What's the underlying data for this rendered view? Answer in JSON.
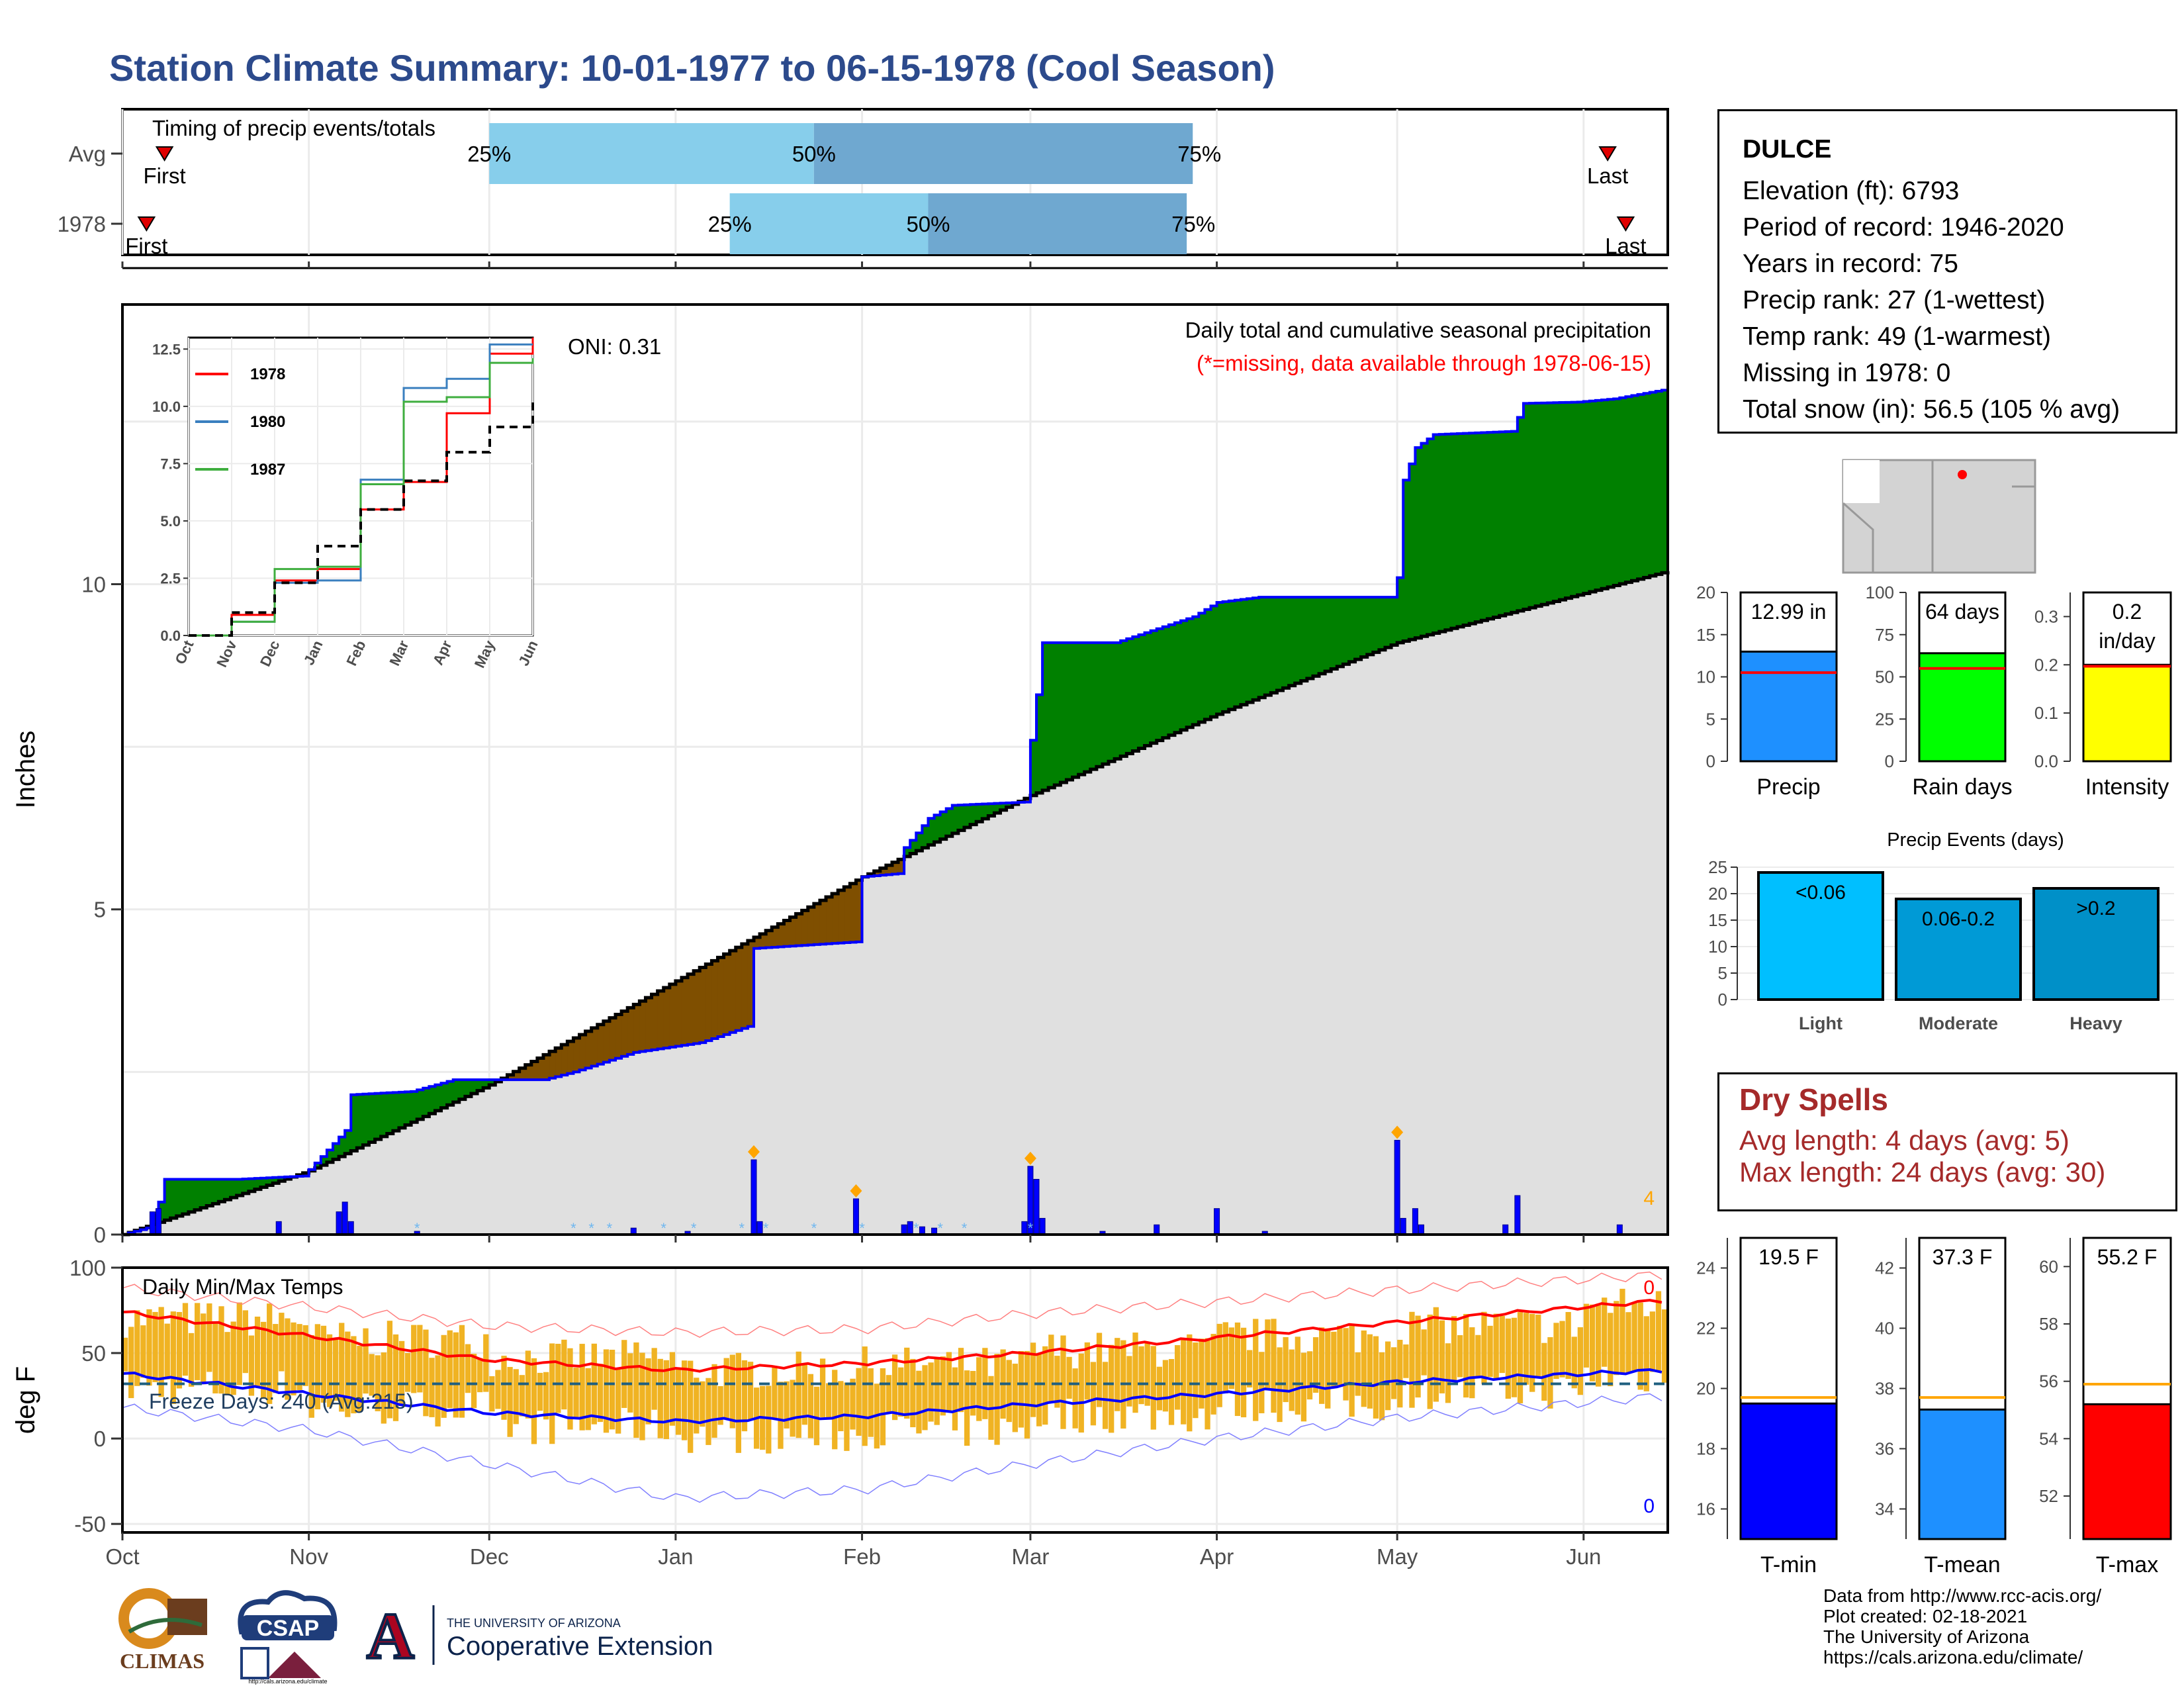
{
  "title": "Station Climate Summary: 10-01-1977 to 06-15-1978 (Cool Season)",
  "station": {
    "name": "DULCE",
    "lines": [
      "Elevation (ft): 6793",
      "Period of record: 1946-2020",
      "Years in record: 75",
      "Precip rank: 27 (1-wettest)",
      "Temp rank: 49 (1-warmest)",
      "Missing in 1978: 0",
      "Total snow (in): 56.5 (105 % avg)"
    ]
  },
  "dry_spells": {
    "title": "Dry Spells",
    "avg": "Avg length: 4 days (avg: 5)",
    "max": "Max length: 24 days (avg: 30)"
  },
  "credits": [
    "Data from http://www.rcc-acis.org/",
    "Plot created: 02-18-2021",
    "The University of Arizona",
    "https://cals.arizona.edu/climate/"
  ],
  "logos": {
    "climas": "CLIMAS",
    "csap": "CSAP",
    "csap_url": "http://cals.arizona.edu/climate",
    "ua_line1": "THE UNIVERSITY OF ARIZONA",
    "ua_line2": "Cooperative Extension",
    "ua_letter": "A"
  },
  "colors": {
    "green": "#008000",
    "brown": "#7f4f00",
    "grey": "#e0e0e0",
    "blue": "#0000ff",
    "light_blue": "#87ceeb",
    "mid_blue": "#6fa8d0",
    "orange": "#f0b323",
    "red": "#ff0000"
  },
  "chart_data": [
    {
      "id": "timing",
      "type": "bar",
      "title": "Timing of precip events/totals",
      "categories": [
        "Avg",
        "1978"
      ],
      "markers": [
        {
          "row": "Avg",
          "first": "1977-10-08",
          "p25": "1977-12-01",
          "p50": "1978-01-24",
          "p75": "1978-03-28",
          "last": "1978-06-05"
        },
        {
          "row": "1978",
          "first": "1977-10-05",
          "p25": "1978-01-10",
          "p50": "1978-02-12",
          "p75": "1978-03-27",
          "last": "1978-06-08"
        }
      ],
      "marker_labels": {
        "first": "First",
        "last": "Last",
        "p25": "25%",
        "p50": "50%",
        "p75": "75%"
      }
    },
    {
      "id": "precip",
      "type": "area",
      "title": "Daily total and cumulative seasonal precipitation",
      "subtitle": "(*=missing, data available through 1978-06-15)",
      "annotation": "ONI: 0.31",
      "corner_value": "4",
      "ylabel": "Inches",
      "ylim": [
        0,
        14.3
      ],
      "yticks": [
        0,
        5,
        10
      ],
      "xlim": [
        "1977-10-01",
        "1978-06-15"
      ],
      "xticks": [
        "Oct",
        "Nov",
        "Dec",
        "Jan",
        "Feb",
        "Mar",
        "Apr",
        "May",
        "Jun"
      ],
      "avg_cumulative": [
        [
          "1977-10-01",
          0
        ],
        [
          "1977-11-01",
          0.98
        ],
        [
          "1977-12-01",
          2.3
        ],
        [
          "1978-01-01",
          3.9
        ],
        [
          "1978-02-01",
          5.5
        ],
        [
          "1978-03-01",
          6.75
        ],
        [
          "1978-04-01",
          8.0
        ],
        [
          "1978-05-01",
          9.1
        ],
        [
          "1978-06-15",
          10.2
        ]
      ],
      "obs_cumulative": [
        [
          "1977-10-01",
          0
        ],
        [
          "1977-10-05",
          0.1
        ],
        [
          "1977-10-07",
          0.5
        ],
        [
          "1977-10-08",
          0.85
        ],
        [
          "1977-10-20",
          0.85
        ],
        [
          "1977-10-31",
          0.9
        ],
        [
          "1977-11-07",
          1.6
        ],
        [
          "1977-11-08",
          2.15
        ],
        [
          "1977-11-18",
          2.2
        ],
        [
          "1977-11-25",
          2.38
        ],
        [
          "1977-12-10",
          2.38
        ],
        [
          "1977-12-15",
          2.5
        ],
        [
          "1977-12-25",
          2.8
        ],
        [
          "1978-01-05",
          2.95
        ],
        [
          "1978-01-13",
          3.2
        ],
        [
          "1978-01-14",
          4.4
        ],
        [
          "1978-01-31",
          4.5
        ],
        [
          "1978-02-01",
          5.5
        ],
        [
          "1978-02-07",
          5.55
        ],
        [
          "1978-02-08",
          5.95
        ],
        [
          "1978-02-12",
          6.4
        ],
        [
          "1978-02-16",
          6.6
        ],
        [
          "1978-02-28",
          6.65
        ],
        [
          "1978-03-01",
          7.6
        ],
        [
          "1978-03-02",
          8.3
        ],
        [
          "1978-03-03",
          9.1
        ],
        [
          "1978-03-15",
          9.1
        ],
        [
          "1978-03-28",
          9.5
        ],
        [
          "1978-04-01",
          9.72
        ],
        [
          "1978-04-08",
          9.8
        ],
        [
          "1978-04-30",
          9.8
        ],
        [
          "1978-05-01",
          10.1
        ],
        [
          "1978-05-02",
          11.6
        ],
        [
          "1978-05-04",
          12.1
        ],
        [
          "1978-05-07",
          12.3
        ],
        [
          "1978-05-20",
          12.35
        ],
        [
          "1978-05-22",
          12.78
        ],
        [
          "1978-05-31",
          12.8
        ],
        [
          "1978-06-06",
          12.85
        ],
        [
          "1978-06-15",
          13.0
        ]
      ],
      "daily": [
        [
          "1977-10-06",
          0.35
        ],
        [
          "1977-10-07",
          0.4
        ],
        [
          "1977-10-27",
          0.2
        ],
        [
          "1977-11-06",
          0.35
        ],
        [
          "1977-11-07",
          0.5
        ],
        [
          "1977-11-08",
          0.2
        ],
        [
          "1977-11-19",
          0.05
        ],
        [
          "1977-12-25",
          0.1
        ],
        [
          "1978-01-03",
          0.05
        ],
        [
          "1978-01-14",
          1.15
        ],
        [
          "1978-01-15",
          0.2
        ],
        [
          "1978-01-31",
          0.55
        ],
        [
          "1978-02-08",
          0.15
        ],
        [
          "1978-02-09",
          0.2
        ],
        [
          "1978-02-11",
          0.12
        ],
        [
          "1978-02-13",
          0.1
        ],
        [
          "1978-02-28",
          0.2
        ],
        [
          "1978-03-01",
          1.05
        ],
        [
          "1978-03-02",
          0.85
        ],
        [
          "1978-03-03",
          0.25
        ],
        [
          "1978-03-13",
          0.05
        ],
        [
          "1978-03-22",
          0.15
        ],
        [
          "1978-04-01",
          0.4
        ],
        [
          "1978-04-09",
          0.05
        ],
        [
          "1978-05-01",
          1.45
        ],
        [
          "1978-05-02",
          0.25
        ],
        [
          "1978-05-04",
          0.4
        ],
        [
          "1978-05-05",
          0.15
        ],
        [
          "1978-05-19",
          0.15
        ],
        [
          "1978-05-21",
          0.6
        ],
        [
          "1978-06-07",
          0.15
        ]
      ],
      "snow_days": [
        "1977-11-19",
        "1977-12-15",
        "1977-12-18",
        "1977-12-21",
        "1977-12-30",
        "1978-01-04",
        "1978-01-12",
        "1978-01-16",
        "1978-01-24",
        "1978-02-01",
        "1978-02-10",
        "1978-02-14",
        "1978-02-18",
        "1978-03-01"
      ],
      "large_event_days": [
        "1978-01-14",
        "1978-01-31",
        "1978-03-01",
        "1978-05-01"
      ]
    },
    {
      "id": "inset",
      "type": "line",
      "ylim": [
        0,
        13
      ],
      "yticks": [
        0.0,
        2.5,
        5.0,
        7.5,
        10.0,
        12.5
      ],
      "xticks": [
        "Oct",
        "Nov",
        "Dec",
        "Jan",
        "Feb",
        "Mar",
        "Apr",
        "May",
        "Jun"
      ],
      "series": [
        {
          "name": "1978",
          "color": "#ff0000",
          "values": [
            0,
            0.9,
            2.4,
            2.9,
            5.5,
            6.7,
            9.7,
            12.3,
            13.0
          ]
        },
        {
          "name": "1980",
          "color": "#3a7fbf",
          "values": [
            0,
            0.6,
            2.3,
            2.4,
            6.8,
            10.8,
            11.2,
            12.7,
            12.7
          ]
        },
        {
          "name": "1987",
          "color": "#3fae3f",
          "values": [
            0,
            0.6,
            2.9,
            3.0,
            6.6,
            10.2,
            10.4,
            11.9,
            12.1
          ]
        },
        {
          "name": "",
          "color": "#000000",
          "dashed": true,
          "values": [
            0,
            1.0,
            2.3,
            3.9,
            5.5,
            6.75,
            8.0,
            9.1,
            10.2
          ]
        }
      ]
    },
    {
      "id": "temps",
      "type": "bar",
      "title": "Daily Min/Max Temps",
      "annotation": "Freeze Days: 240 (Avg:215)",
      "corner_top": "0",
      "corner_bottom": "0",
      "ylabel": "deg F",
      "ylim": [
        -55,
        100
      ],
      "yticks": [
        -50,
        0,
        50,
        100
      ],
      "xticks": [
        "Oct",
        "Nov",
        "Dec",
        "Jan",
        "Feb",
        "Mar",
        "Apr",
        "May",
        "Jun"
      ],
      "freeze_line": 32,
      "avg_max": [
        [
          "1977-10-01",
          74
        ],
        [
          "1977-11-01",
          60
        ],
        [
          "1977-12-01",
          46
        ],
        [
          "1978-01-01",
          40
        ],
        [
          "1978-02-01",
          44
        ],
        [
          "1978-03-01",
          50
        ],
        [
          "1978-04-01",
          59
        ],
        [
          "1978-05-01",
          68
        ],
        [
          "1978-06-15",
          81
        ]
      ],
      "avg_min": [
        [
          "1977-10-01",
          38
        ],
        [
          "1977-11-01",
          26
        ],
        [
          "1977-12-01",
          15
        ],
        [
          "1978-01-01",
          10
        ],
        [
          "1978-02-01",
          13
        ],
        [
          "1978-03-01",
          20
        ],
        [
          "1978-04-01",
          26
        ],
        [
          "1978-05-01",
          33
        ],
        [
          "1978-06-15",
          40
        ]
      ],
      "record_max": [
        [
          "1977-10-01",
          88
        ],
        [
          "1977-11-01",
          77
        ],
        [
          "1977-12-01",
          66
        ],
        [
          "1978-01-01",
          62
        ],
        [
          "1978-02-01",
          64
        ],
        [
          "1978-03-01",
          73
        ],
        [
          "1978-04-01",
          80
        ],
        [
          "1978-05-01",
          87
        ],
        [
          "1978-06-15",
          96
        ]
      ],
      "record_min": [
        [
          "1977-10-01",
          18
        ],
        [
          "1977-11-01",
          5
        ],
        [
          "1977-12-01",
          -15
        ],
        [
          "1978-01-01",
          -35
        ],
        [
          "1978-02-01",
          -30
        ],
        [
          "1978-03-01",
          -15
        ],
        [
          "1978-04-01",
          0
        ],
        [
          "1978-05-01",
          12
        ],
        [
          "1978-06-15",
          25
        ]
      ],
      "daily_max_monthly_mean": [
        70,
        58,
        47,
        40,
        43,
        52,
        60,
        66,
        78
      ],
      "daily_min_monthly_mean": [
        30,
        18,
        7,
        2,
        5,
        14,
        20,
        28,
        36
      ]
    },
    {
      "id": "precip-summary",
      "type": "bar",
      "categories": [
        "Precip",
        "Rain days",
        "Intensity"
      ],
      "values": [
        12.99,
        64,
        0.2
      ],
      "averages": [
        10.5,
        55,
        0.197
      ],
      "value_labels": [
        "12.99 in",
        "64 days",
        "0.2\nin/day"
      ],
      "ylims": [
        [
          0,
          20
        ],
        [
          0,
          100
        ],
        [
          0,
          0.35
        ]
      ],
      "yticks": [
        [
          0,
          5,
          10,
          15,
          20
        ],
        [
          0,
          25,
          50,
          75,
          100
        ],
        [
          0.0,
          0.1,
          0.2,
          0.3
        ]
      ],
      "colors": [
        "#1e90ff",
        "#00ff00",
        "#ffff00"
      ]
    },
    {
      "id": "precip-events",
      "type": "bar",
      "title": "Precip Events (days)",
      "categories": [
        "Light",
        "Moderate",
        "Heavy"
      ],
      "values": [
        24,
        19,
        21
      ],
      "value_labels": [
        "<0.06",
        "0.06-0.2",
        ">0.2"
      ],
      "ylim": [
        0,
        25
      ],
      "yticks": [
        0,
        5,
        10,
        15,
        20,
        25
      ],
      "colors": [
        "#00bfff",
        "#009ad6",
        "#0090c8"
      ]
    },
    {
      "id": "temp-summary",
      "type": "bar",
      "categories": [
        "T-min",
        "T-mean",
        "T-max"
      ],
      "values": [
        19.5,
        37.3,
        55.2
      ],
      "averages": [
        19.7,
        37.7,
        55.9
      ],
      "value_labels": [
        "19.5 F",
        "37.3 F",
        "55.2 F"
      ],
      "ylims": [
        [
          15,
          25
        ],
        [
          33,
          43
        ],
        [
          50.5,
          61
        ]
      ],
      "yticks": [
        [
          16,
          18,
          20,
          22,
          24
        ],
        [
          34,
          36,
          38,
          40,
          42
        ],
        [
          52,
          54,
          56,
          58,
          60
        ]
      ],
      "colors": [
        "#0000ff",
        "#1e90ff",
        "#ff0000"
      ]
    }
  ]
}
